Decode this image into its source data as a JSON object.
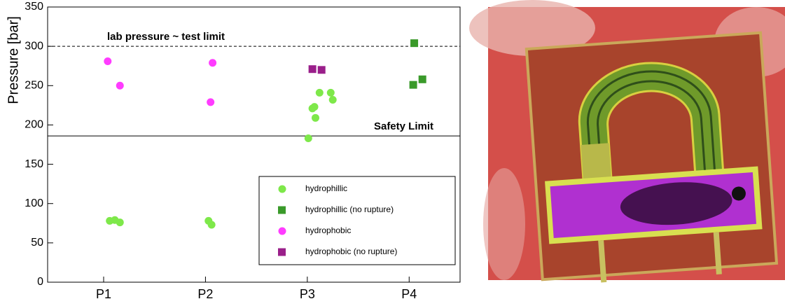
{
  "chart_data": {
    "type": "scatter",
    "ylabel": "Pressure [bar]",
    "xlim": [
      0.45,
      4.5
    ],
    "xticks": [
      {
        "value": 1,
        "label": "P1"
      },
      {
        "value": 2,
        "label": "P2"
      },
      {
        "value": 3,
        "label": "P3"
      },
      {
        "value": 4,
        "label": "P4"
      }
    ],
    "ylim": [
      0,
      350
    ],
    "yticks": [
      0,
      50,
      100,
      150,
      200,
      250,
      300,
      350
    ],
    "legend": "lower right",
    "hlines": [
      {
        "value": 300,
        "label": "lab pressure ~ test limit",
        "style": "dashed"
      },
      {
        "value": 186,
        "label": "Safety Limit",
        "style": "solid"
      }
    ],
    "series": [
      {
        "name": "hydrophillic",
        "color": "#7ee84a",
        "marker": "circle",
        "x": [
          1.06,
          1.11,
          1.16,
          2.03,
          2.06,
          3.01,
          3.08,
          3.05,
          3.07,
          3.12,
          3.23,
          3.25
        ],
        "values": [
          78,
          79,
          76,
          78,
          73,
          183,
          209,
          221,
          223,
          241,
          241,
          232
        ]
      },
      {
        "name": "hydrophillic (no rupture)",
        "color": "#3a9a2a",
        "marker": "square",
        "x": [
          4.05,
          4.04,
          4.13
        ],
        "values": [
          304,
          251,
          258
        ]
      },
      {
        "name": "hydrophobic",
        "color": "#ff3cff",
        "marker": "circle",
        "x": [
          1.04,
          1.16,
          2.07,
          2.05
        ],
        "values": [
          281,
          250,
          279,
          229
        ]
      },
      {
        "name": "hydrophobic (no rupture)",
        "color": "#9a1f8a",
        "marker": "square",
        "x": [
          3.05,
          3.14
        ],
        "values": [
          271,
          270
        ]
      }
    ]
  }
}
